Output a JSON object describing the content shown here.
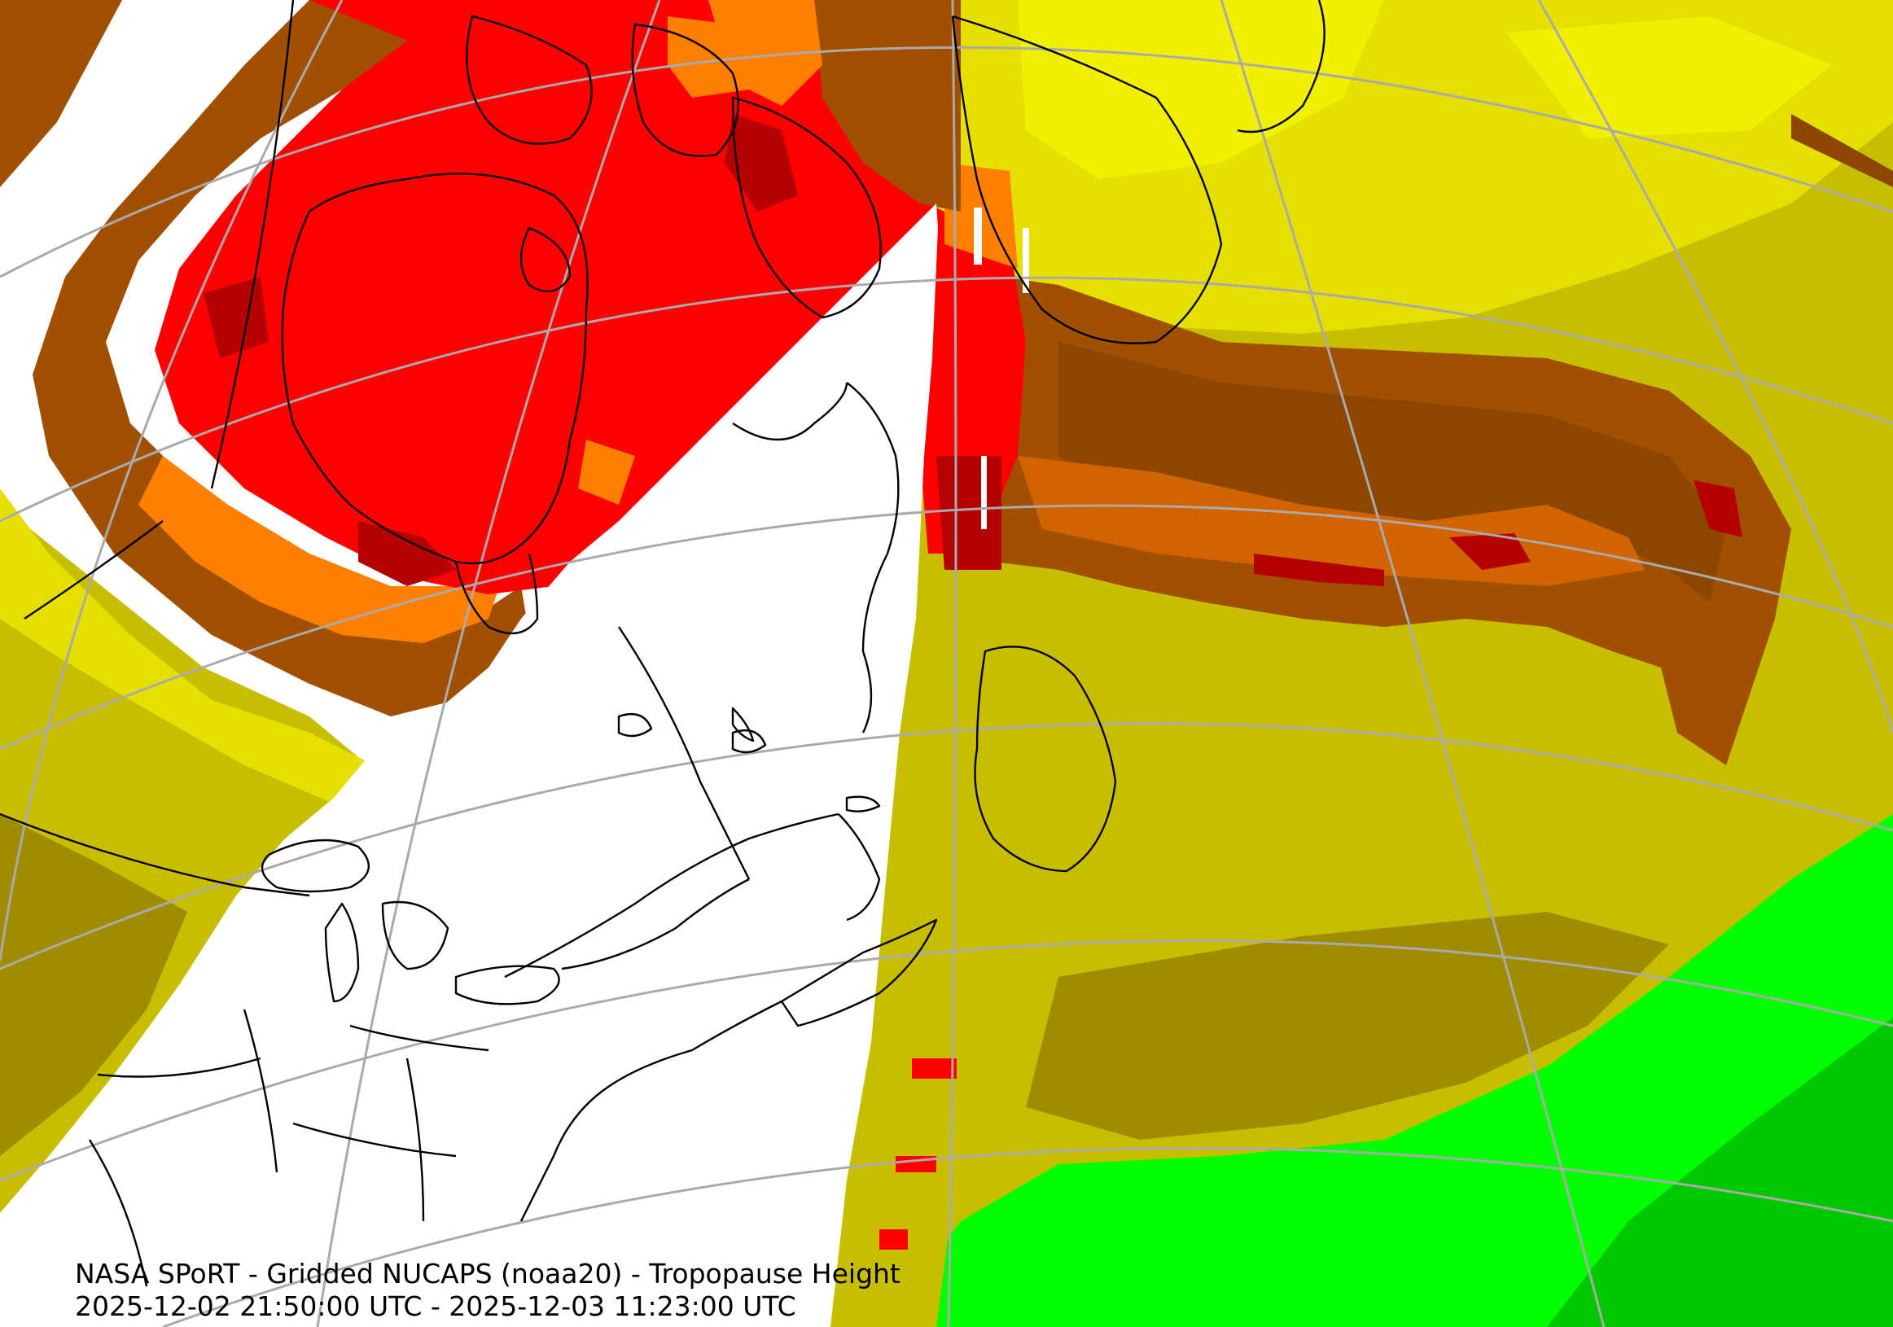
{
  "caption": {
    "title": "NASA SPoRT - Gridded NUCAPS (noaa20) - Tropopause Height",
    "time_range": "2025-12-02 21:50:00 UTC - 2025-12-03 11:23:00 UTC"
  },
  "colors": {
    "background_no_data": "#ffffff",
    "red": "#ff0000",
    "dark_red": "#b40000",
    "orange": "#ff7f00",
    "dark_orange": "#d26400",
    "brown": "#a05000",
    "dark_brown": "#8c4600",
    "yellow": "#f0f000",
    "olive_yellow": "#dcd700",
    "olive": "#c8be00",
    "dark_olive": "#a08c00",
    "olive_brown": "#8c7800",
    "green": "#00ff00",
    "dark_green": "#00c800",
    "graticule": "#aaaaaa",
    "coastline": "#000000"
  }
}
